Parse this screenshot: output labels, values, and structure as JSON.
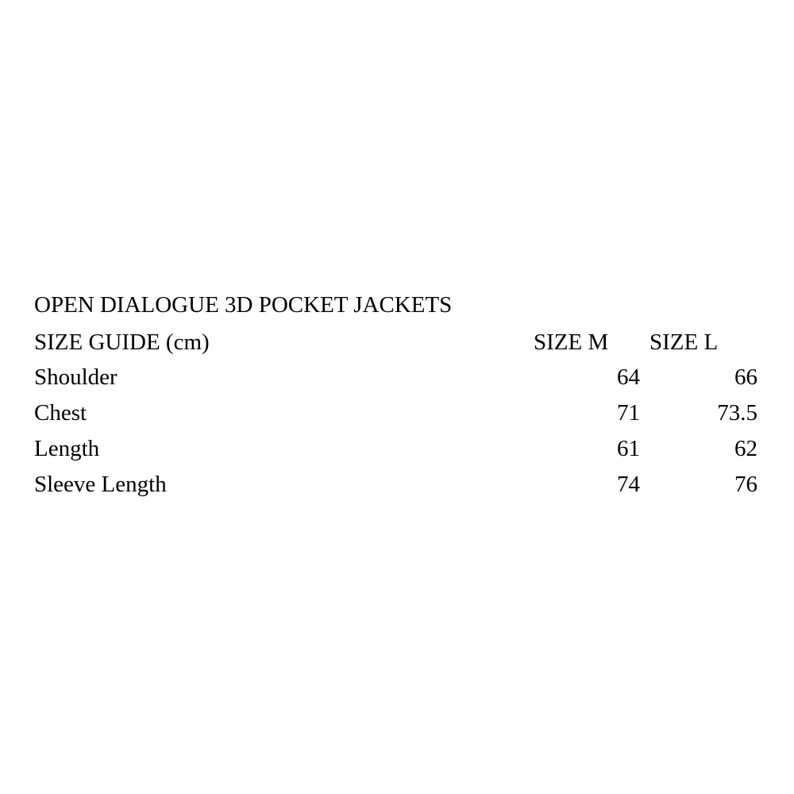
{
  "title": "OPEN DIALOGUE 3D POCKET JACKETS",
  "header": {
    "label": "SIZE GUIDE (cm)",
    "col_m": "SIZE M",
    "col_l": "SIZE L"
  },
  "rows": [
    {
      "label": "Shoulder",
      "m": "64",
      "l": "66"
    },
    {
      "label": "Chest",
      "m": "71",
      "l": "73.5"
    },
    {
      "label": "Length",
      "m": "61",
      "l": "62"
    },
    {
      "label": "Sleeve Length",
      "m": "74",
      "l": "76"
    }
  ]
}
